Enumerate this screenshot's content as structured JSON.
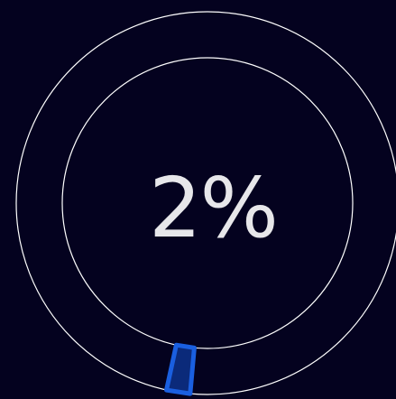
{
  "progress": {
    "percent": 2,
    "label": "2%"
  },
  "colors": {
    "background": "#04021f",
    "ring_stroke": "#ffffff",
    "segment_fill": "#0b2a7a",
    "segment_stroke": "#1a5fe0",
    "label": "#e7e7ea"
  }
}
